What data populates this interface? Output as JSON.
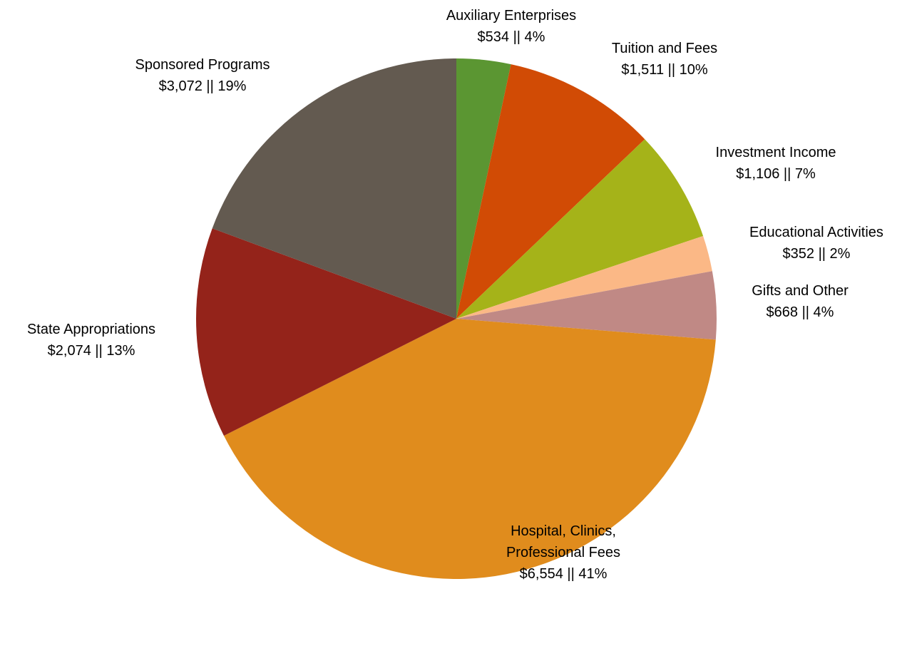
{
  "chart_data": {
    "type": "pie",
    "categories": [
      "Auxiliary Enterprises",
      "Tuition and Fees",
      "Investment Income",
      "Educational Activities",
      "Gifts and Other",
      "Hospital, Clinics, Professional Fees",
      "State Appropriations",
      "Sponsored Programs"
    ],
    "values": [
      534,
      1511,
      1106,
      352,
      668,
      6554,
      2074,
      3072
    ],
    "value_labels": [
      "$534 || 4%",
      "$1,511 || 10%",
      "$1,106 || 7%",
      "$352 || 2%",
      "$668 || 4%",
      "$6,554 || 41%",
      "$2,074 || 13%",
      "$3,072 || 19%"
    ],
    "colors": [
      "#5b9632",
      "#d14b05",
      "#a5b319",
      "#fbb886",
      "#c08985",
      "#e08c1d",
      "#94231a",
      "#635a50"
    ]
  }
}
